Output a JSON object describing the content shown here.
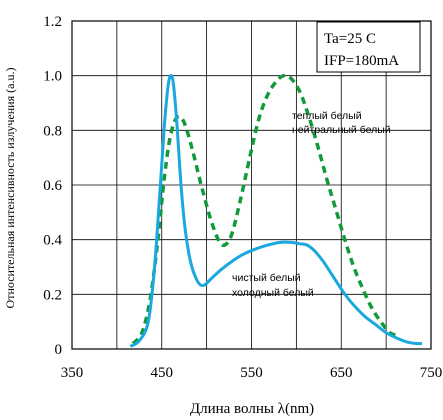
{
  "chart_data": {
    "type": "line",
    "xlabel": "Длина волны λ(nm)",
    "ylabel": "Относительная интенсивность излучения (a.u.)",
    "xlim": [
      350,
      750
    ],
    "ylim": [
      0,
      1.2
    ],
    "x_ticks": [
      "350",
      "450",
      "550",
      "650",
      "750"
    ],
    "y_ticks": [
      "0",
      "0.2",
      "0.4",
      "0.6",
      "0.8",
      "1.0",
      "1.2"
    ],
    "grid": true,
    "conditions": [
      "Ta=25 C",
      "IFP=180mA"
    ],
    "series": [
      {
        "name": "теплый белый нейтральный белый",
        "style": "dashed",
        "color": "#119a3a",
        "points": [
          [
            418,
            0.02
          ],
          [
            428,
            0.06
          ],
          [
            437,
            0.18
          ],
          [
            445,
            0.38
          ],
          [
            452,
            0.6
          ],
          [
            458,
            0.75
          ],
          [
            464,
            0.83
          ],
          [
            470,
            0.85
          ],
          [
            476,
            0.82
          ],
          [
            484,
            0.73
          ],
          [
            494,
            0.6
          ],
          [
            504,
            0.48
          ],
          [
            513,
            0.4
          ],
          [
            520,
            0.38
          ],
          [
            528,
            0.42
          ],
          [
            538,
            0.55
          ],
          [
            548,
            0.7
          ],
          [
            558,
            0.84
          ],
          [
            568,
            0.93
          ],
          [
            578,
            0.98
          ],
          [
            586,
            1.0
          ],
          [
            594,
            0.99
          ],
          [
            604,
            0.94
          ],
          [
            614,
            0.85
          ],
          [
            624,
            0.74
          ],
          [
            634,
            0.62
          ],
          [
            644,
            0.51
          ],
          [
            654,
            0.4
          ],
          [
            664,
            0.3
          ],
          [
            674,
            0.22
          ],
          [
            684,
            0.15
          ],
          [
            694,
            0.1
          ],
          [
            704,
            0.06
          ],
          [
            712,
            0.05
          ]
        ]
      },
      {
        "name": "чистый белый холодный белый",
        "style": "solid",
        "color": "#1aa8de",
        "points": [
          [
            415,
            0.01
          ],
          [
            425,
            0.03
          ],
          [
            435,
            0.1
          ],
          [
            442,
            0.3
          ],
          [
            448,
            0.58
          ],
          [
            453,
            0.82
          ],
          [
            457,
            0.96
          ],
          [
            460,
            1.0
          ],
          [
            463,
            0.97
          ],
          [
            467,
            0.82
          ],
          [
            471,
            0.62
          ],
          [
            476,
            0.44
          ],
          [
            482,
            0.32
          ],
          [
            488,
            0.26
          ],
          [
            493,
            0.235
          ],
          [
            498,
            0.235
          ],
          [
            506,
            0.26
          ],
          [
            516,
            0.29
          ],
          [
            528,
            0.32
          ],
          [
            540,
            0.345
          ],
          [
            554,
            0.365
          ],
          [
            568,
            0.38
          ],
          [
            582,
            0.39
          ],
          [
            594,
            0.39
          ],
          [
            604,
            0.385
          ],
          [
            612,
            0.38
          ],
          [
            620,
            0.36
          ],
          [
            630,
            0.32
          ],
          [
            640,
            0.27
          ],
          [
            652,
            0.21
          ],
          [
            664,
            0.16
          ],
          [
            676,
            0.12
          ],
          [
            688,
            0.09
          ],
          [
            700,
            0.06
          ],
          [
            712,
            0.04
          ],
          [
            724,
            0.025
          ],
          [
            734,
            0.02
          ],
          [
            740,
            0.02
          ]
        ]
      }
    ]
  }
}
